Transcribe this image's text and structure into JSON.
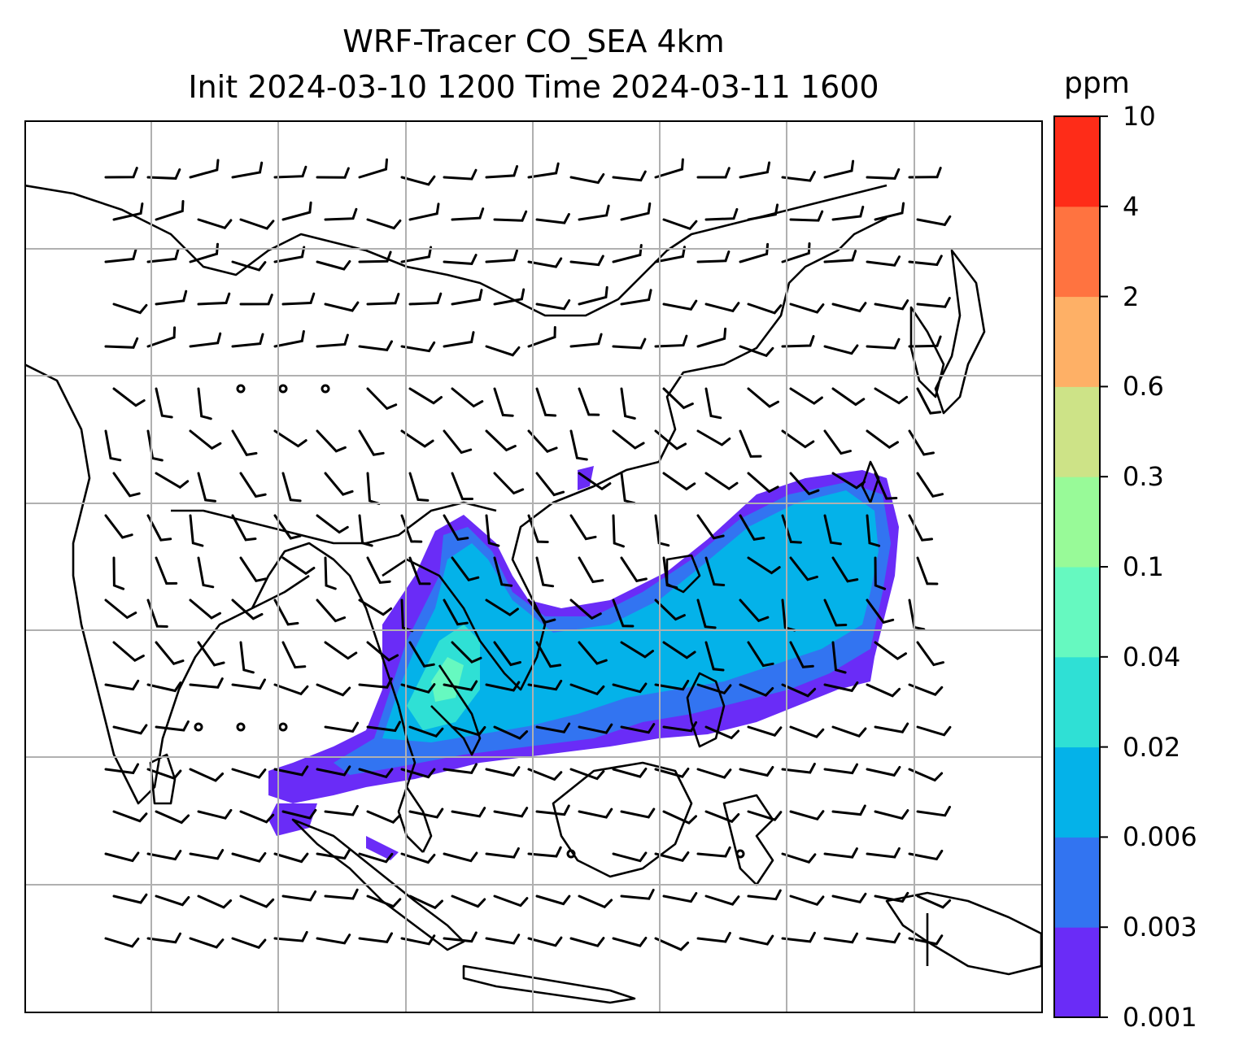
{
  "title": {
    "line1": "WRF-Tracer CO_SEA 4km",
    "line2": "Init 2024-03-10 1200 Time 2024-03-11 1600"
  },
  "colorbar": {
    "unit": "ppm",
    "ticks": [
      "0.001",
      "0.003",
      "0.006",
      "0.02",
      "0.04",
      "0.1",
      "0.3",
      "0.6",
      "2",
      "4",
      "10"
    ],
    "colors": [
      "#6a2cf7",
      "#3274f1",
      "#04b2e9",
      "#2fe0d5",
      "#66f9c0",
      "#98fa98",
      "#cde387",
      "#feb066",
      "#ff7340",
      "#fe2c18"
    ]
  },
  "map": {
    "style": "filled contours of tracer concentration with overlaid wind barbs and coastlines",
    "gridlines": true,
    "region": "South and Southeast Asia, East Asia, Maritime Continent"
  }
}
